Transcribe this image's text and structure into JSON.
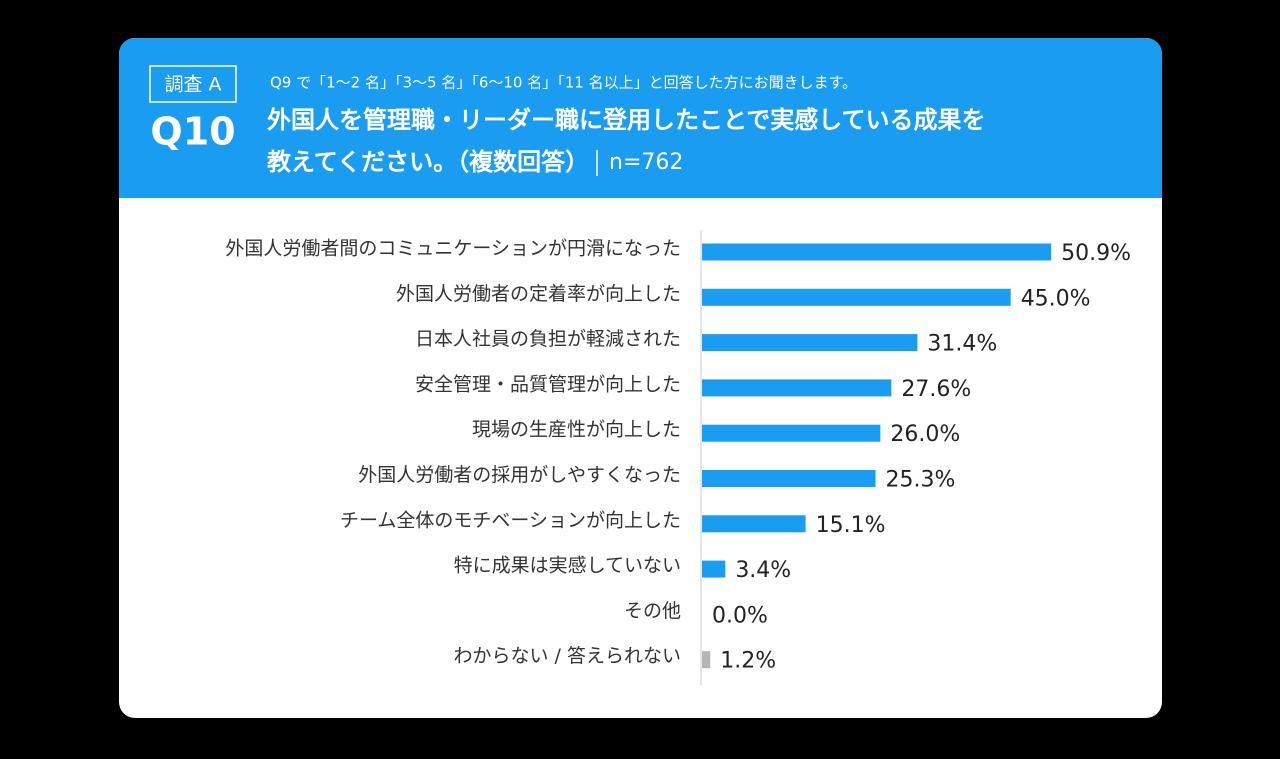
{
  "header": {
    "badge": "調査 A",
    "question_no": "Q10",
    "subtitle": "Q9 で「1～2 名」「3～5 名」「6～10 名」「11 名以上」と回答した方にお聞きします。",
    "title_lines": [
      "外国人を管理職・リーダー職に登用したことで実感している成果を",
      "教えてください。（複数回答）"
    ],
    "sample": "n=762"
  },
  "chart_data": {
    "type": "hbar",
    "categories": [
      "外国人労働者間のコミュニケーションが円滑になった",
      "外国人労働者の定着率が向上した",
      "日本人社員の負担が軽減された",
      "安全管理・品質管理が向上した",
      "現場の生産性が向上した",
      "外国人労働者の採用がしやすくなった",
      "チーム全体のモチベーションが向上した",
      "特に成果は実感していない",
      "その他",
      "わからない / 答えられない"
    ],
    "values": [
      50.9,
      45.0,
      31.4,
      27.6,
      26.0,
      25.3,
      15.1,
      3.4,
      0.0,
      1.2
    ],
    "value_labels": [
      "50.9%",
      "45.0%",
      "31.4%",
      "27.6%",
      "26.0%",
      "25.3%",
      "15.1%",
      "3.4%",
      "0.0%",
      "1.2%"
    ],
    "colors": [
      "#1a9cf0",
      "#1a9cf0",
      "#1a9cf0",
      "#1a9cf0",
      "#1a9cf0",
      "#1a9cf0",
      "#1a9cf0",
      "#1a9cf0",
      "#1a9cf0",
      "#b5b5b5"
    ]
  }
}
